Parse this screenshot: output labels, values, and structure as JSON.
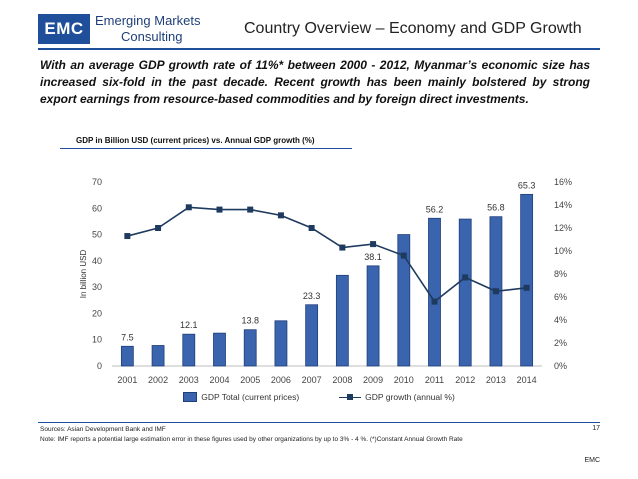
{
  "header": {
    "logo_abbr": "EMC",
    "logo_line1": "Emerging Markets",
    "logo_line2": "Consulting",
    "title": "Country Overview – Economy and GDP Growth"
  },
  "summary": "With an average GDP growth rate of 11%* between 2000 - 2012, Myanmar’s economic size has increased six-fold in the past decade. Recent growth has been mainly bolstered by strong export earnings from resource-based commodities and by foreign direct investments.",
  "chart_data": {
    "type": "bar+line",
    "title": "GDP in Billion USD  (current prices) vs. Annual GDP growth (%)",
    "categories": [
      "2001",
      "2002",
      "2003",
      "2004",
      "2005",
      "2006",
      "2007",
      "2008",
      "2009",
      "2010",
      "2011",
      "2012",
      "2013",
      "2014"
    ],
    "series": [
      {
        "name": "GDP Total (current prices)",
        "type": "bar",
        "axis": "left",
        "values": [
          7.5,
          7.8,
          12.1,
          12.5,
          13.8,
          17.2,
          23.3,
          34.5,
          38.1,
          50.0,
          56.2,
          55.9,
          56.8,
          65.3
        ],
        "labels": [
          "7.5",
          "",
          "12.1",
          "",
          "13.8",
          "",
          "23.3",
          "",
          "38.1",
          "",
          "56.2",
          "",
          "56.8",
          "65.3"
        ]
      },
      {
        "name": "GDP growth (annual %)",
        "type": "line",
        "axis": "right",
        "values": [
          11.3,
          12.0,
          13.8,
          13.6,
          13.6,
          13.1,
          12.0,
          10.3,
          10.6,
          9.6,
          5.6,
          7.7,
          6.5,
          6.8
        ]
      }
    ],
    "ylabel": "In billion USD",
    "ylim": [
      0,
      70
    ],
    "yticks": [
      "0",
      "10",
      "20",
      "30",
      "40",
      "50",
      "60",
      "70"
    ],
    "y2lim": [
      0,
      16
    ],
    "y2ticks": [
      "0%",
      "2%",
      "4%",
      "6%",
      "8%",
      "10%",
      "12%",
      "14%",
      "16%"
    ],
    "legend": "bottom",
    "grid": false
  },
  "footer": {
    "sources": "Sources: Asian Development Bank and IMF",
    "note": "Note: IMF reports a potential large estimation error in these figures used by other organizations by up to 3% - 4 %. (*)Constant Annual Growth Rate",
    "page": "17",
    "brand": "EMC"
  },
  "colors": {
    "bar_fill": "#3a64ad",
    "bar_stroke": "#1f3f7a",
    "line": "#1f3a5f",
    "accent": "#1f4e9a"
  }
}
